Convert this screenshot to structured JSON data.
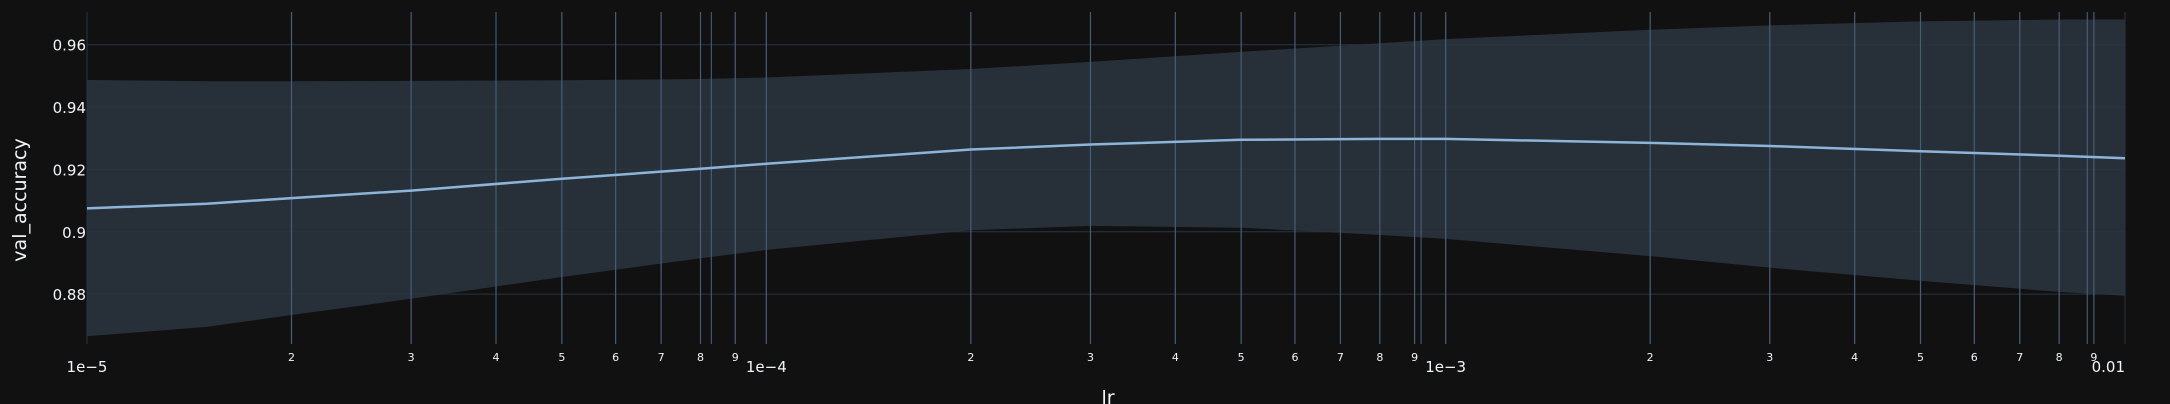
{
  "chart_data": {
    "type": "line",
    "x_scale": "log",
    "xlabel": "lr",
    "ylabel": "val_accuracy",
    "xlim": [
      1e-05,
      0.01
    ],
    "ylim": [
      0.864,
      0.9705
    ],
    "grid": true,
    "x_major_ticks": [
      {
        "value": 1e-05,
        "label": "1e−5"
      },
      {
        "value": 0.0001,
        "label": "1e−4"
      },
      {
        "value": 0.001,
        "label": "1e−3"
      },
      {
        "value": 0.01,
        "label": "0.01"
      }
    ],
    "x_minor_tick_labels": [
      "2",
      "3",
      "4",
      "5",
      "6",
      "7",
      "8",
      "9"
    ],
    "y_ticks": [
      {
        "value": 0.88,
        "label": "0.88"
      },
      {
        "value": 0.9,
        "label": "0.9"
      },
      {
        "value": 0.92,
        "label": "0.92"
      },
      {
        "value": 0.94,
        "label": "0.94"
      },
      {
        "value": 0.96,
        "label": "0.96"
      }
    ],
    "sample_lines_x": [
      2e-05,
      3e-05,
      4e-05,
      5e-05,
      6e-05,
      7e-05,
      8e-05,
      8.3e-05,
      9e-05,
      0.0001,
      0.0002,
      0.0003,
      0.0004,
      0.0005,
      0.0006,
      0.0007,
      0.0008,
      0.0009,
      0.00092,
      0.001,
      0.002,
      0.003,
      0.004,
      0.005,
      0.006,
      0.007,
      0.008,
      0.0088,
      0.009
    ],
    "series": [
      {
        "x": [
          1e-05,
          1.5e-05,
          2e-05,
          3e-05,
          5e-05,
          8e-05,
          0.0001,
          0.0002,
          0.0003,
          0.0005,
          0.0008,
          0.001,
          0.002,
          0.003,
          0.005,
          0.008,
          0.01
        ],
        "mean": [
          0.9075,
          0.909,
          0.9108,
          0.9132,
          0.917,
          0.9202,
          0.9218,
          0.9264,
          0.928,
          0.9295,
          0.9298,
          0.9298,
          0.9285,
          0.9275,
          0.9258,
          0.9244,
          0.9236
        ],
        "upper": [
          0.9487,
          0.9483,
          0.9483,
          0.9484,
          0.9486,
          0.949,
          0.9495,
          0.9522,
          0.9545,
          0.9577,
          0.9605,
          0.9618,
          0.9648,
          0.9662,
          0.9675,
          0.9681,
          0.9681
        ],
        "lower": [
          0.8665,
          0.8695,
          0.8733,
          0.8785,
          0.8855,
          0.8915,
          0.8942,
          0.9005,
          0.9019,
          0.9013,
          0.899,
          0.8977,
          0.8922,
          0.8885,
          0.8843,
          0.8807,
          0.8795
        ]
      }
    ]
  },
  "colors": {
    "background": "#111111",
    "grid": "#283442",
    "band": "#2a343e",
    "mean_line": "#8db5d9",
    "sample_line": "#506784",
    "text": "#f2f5fa"
  }
}
